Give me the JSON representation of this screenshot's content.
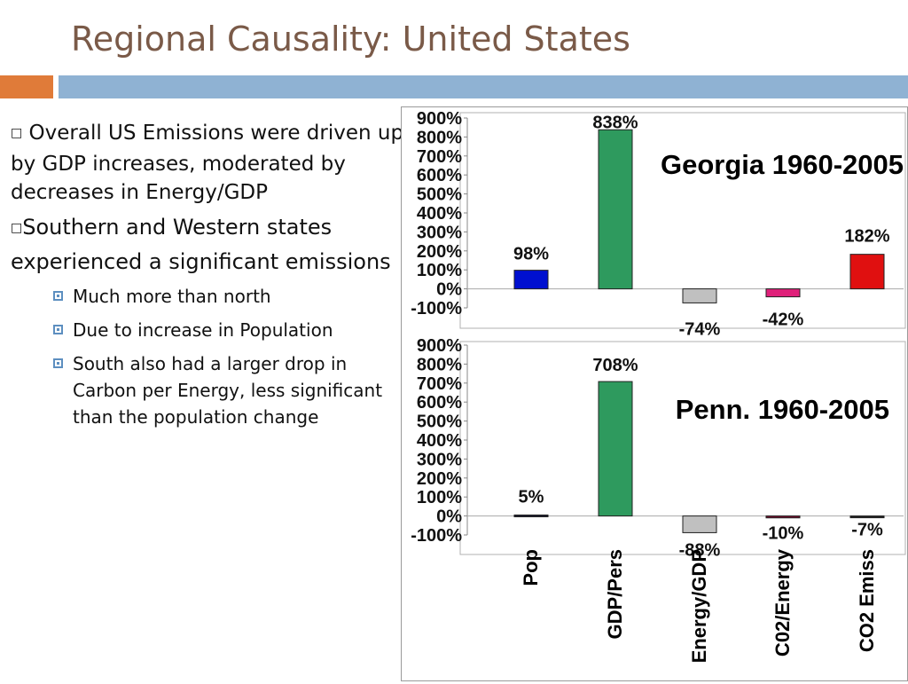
{
  "slide": {
    "title": "Regional Causality: United States",
    "accent_color": "#e07b39",
    "bar_color": "#8fb2d3"
  },
  "bullets": [
    {
      "marker": "□",
      "text": " Overall US Emissions were driven up by GDP increases, moderated by decreases in Energy/GDP"
    },
    {
      "marker": "□",
      "text": "Southern and Western states experienced a significant emissions"
    }
  ],
  "sub_bullets": [
    "Much more than north",
    "Due to increase in Population",
    "South also had a larger drop in Carbon per Energy, less significant than the population change"
  ],
  "chart_data": [
    {
      "type": "bar",
      "title": "Georgia 1960-2005",
      "categories": [
        "Pop",
        "GDP/Pers",
        "Energy/GDP",
        "C02/Energy",
        "CO2 Emiss"
      ],
      "values": [
        98,
        838,
        -74,
        -42,
        182
      ],
      "data_labels": [
        "98%",
        "838%",
        "-74%",
        "-42%",
        "182%"
      ],
      "colors": [
        "#0010d0",
        "#2e9a5e",
        "#c0c0c0",
        "#e0207a",
        "#e01010"
      ],
      "yticks": [
        "900%",
        "800%",
        "700%",
        "600%",
        "500%",
        "400%",
        "300%",
        "200%",
        "100%",
        "0%",
        "-100%"
      ],
      "ylim": [
        -100,
        900
      ]
    },
    {
      "type": "bar",
      "title": "Penn. 1960-2005",
      "categories": [
        "Pop",
        "GDP/Pers",
        "Energy/GDP",
        "C02/Energy",
        "CO2 Emiss"
      ],
      "values": [
        5,
        708,
        -88,
        -10,
        -7
      ],
      "data_labels": [
        "5%",
        "708%",
        "-88%",
        "-10%",
        "-7%"
      ],
      "colors": [
        "#1a1a2e",
        "#2e9a5e",
        "#c0c0c0",
        "#7a1030",
        "#222222"
      ],
      "yticks": [
        "900%",
        "800%",
        "700%",
        "600%",
        "500%",
        "400%",
        "300%",
        "200%",
        "100%",
        "0%",
        "-100%"
      ],
      "ylim": [
        -100,
        900
      ]
    }
  ]
}
